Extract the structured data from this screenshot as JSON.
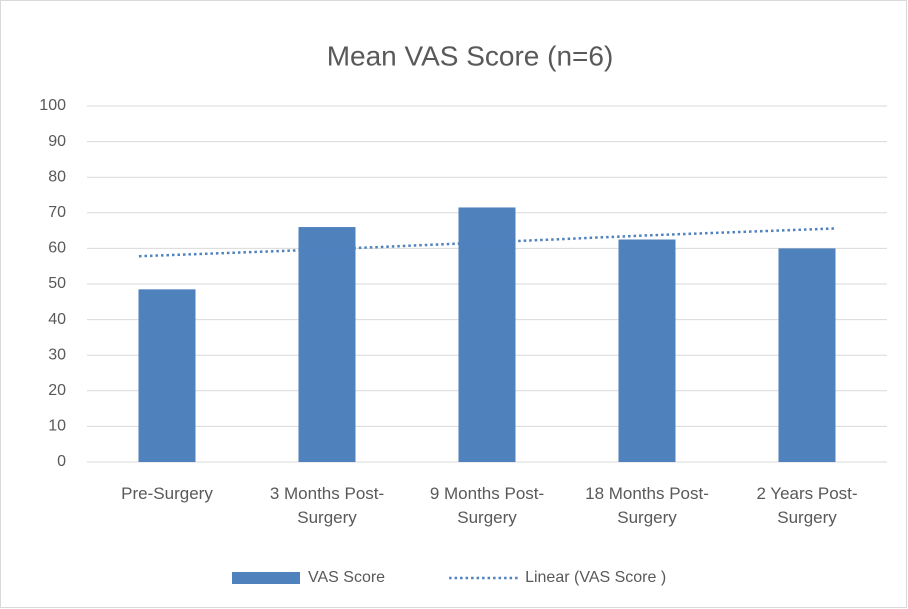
{
  "chart_data": {
    "type": "bar",
    "title": "Mean VAS Score (n=6)",
    "categories": [
      "Pre-Surgery",
      "3 Months Post-Surgery",
      "9 Months Post-Surgery",
      "18 Months Post-Surgery",
      "2 Years Post-Surgery"
    ],
    "series": [
      {
        "name": "VAS Score",
        "color": "#4f81bd",
        "values": [
          48.5,
          66,
          71.5,
          62.5,
          60
        ]
      },
      {
        "name": "Linear (VAS Score )",
        "color": "#4f81bd",
        "style": "dotted",
        "values": [
          57.8,
          59.75,
          61.7,
          63.65,
          65.6
        ]
      }
    ],
    "ylim": [
      0,
      100
    ],
    "yticks": [
      0,
      10,
      20,
      30,
      40,
      50,
      60,
      70,
      80,
      90,
      100
    ],
    "grid": true,
    "legend": "bottom"
  }
}
